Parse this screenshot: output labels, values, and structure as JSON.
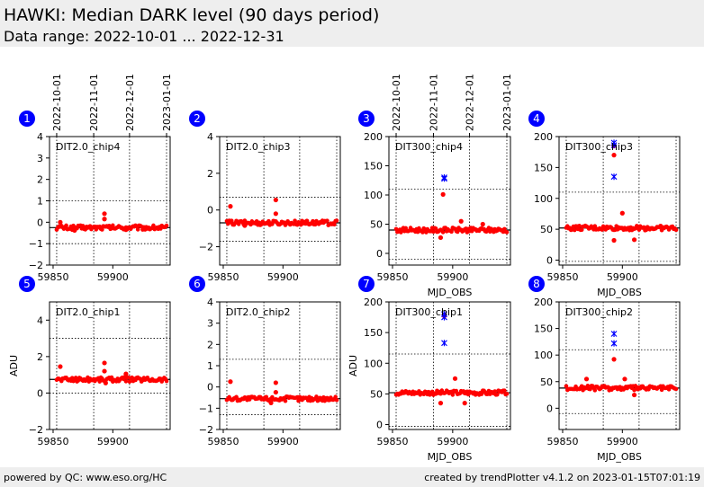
{
  "header": {
    "title": "HAWKI: Median DARK level (90 days period)",
    "subtitle": "Data range: 2022-10-01 ... 2022-12-31"
  },
  "footer": {
    "left": "powered by QC: www.eso.org/HC",
    "right": "created by trendPlotter v4.1.2 on 2023-01-15T07:01:19"
  },
  "colors": {
    "data": "#ff0000",
    "outlier": "#0000ff",
    "badge": "#0000ff"
  },
  "date_ticks": {
    "labels": [
      "2022-10-01",
      "2022-11-01",
      "2022-12-01",
      "2023-01-01"
    ],
    "mjd": [
      59853,
      59884,
      59914,
      59945
    ]
  },
  "chart_data": [
    {
      "type": "scatter",
      "badge": "1",
      "label": "DIT2.0_chip4",
      "xlabel": "",
      "ylabel": "",
      "xlim": [
        59847,
        59948
      ],
      "xticks": [
        59850,
        59900
      ],
      "ylim": [
        -2,
        4
      ],
      "yticks": [
        -2,
        -1,
        0,
        1,
        2,
        3,
        4
      ],
      "ref_line": -0.25,
      "band": [
        -1,
        1
      ],
      "base": [
        59853,
        59945,
        -0.25
      ],
      "points": [
        [
          59856,
          0.0
        ],
        [
          59893,
          0.4
        ],
        [
          59893,
          0.15
        ],
        [
          59868,
          -0.38
        ],
        [
          59911,
          -0.35
        ]
      ],
      "outliers": []
    },
    {
      "type": "scatter",
      "badge": "2",
      "label": "DIT2.0_chip3",
      "xlabel": "",
      "ylabel": "",
      "xlim": [
        59847,
        59948
      ],
      "xticks": [
        59850,
        59900
      ],
      "ylim": [
        -3,
        4
      ],
      "yticks": [
        -2,
        0,
        2,
        4
      ],
      "ref_line": -0.7,
      "band": [
        -1.7,
        0.7
      ],
      "base": [
        59853,
        59945,
        -0.7
      ],
      "points": [
        [
          59856,
          0.2
        ],
        [
          59894,
          0.55
        ],
        [
          59894,
          -0.2
        ],
        [
          59868,
          -0.85
        ],
        [
          59920,
          -0.6
        ]
      ],
      "outliers": []
    },
    {
      "type": "scatter",
      "badge": "3",
      "label": "DIT300_chip4",
      "xlabel": "MJD_OBS",
      "ylabel": "",
      "xlim": [
        59847,
        59948
      ],
      "xticks": [
        59850,
        59900
      ],
      "ylim": [
        -20,
        200
      ],
      "yticks": [
        0,
        50,
        100,
        150,
        200
      ],
      "ref_line": 40,
      "band": [
        -10,
        110
      ],
      "base": [
        59853,
        59945,
        40
      ],
      "points": [
        [
          59892,
          101
        ],
        [
          59890,
          27
        ],
        [
          59907,
          55
        ],
        [
          59925,
          50
        ]
      ],
      "outliers": [
        [
          59893,
          130
        ],
        [
          59893,
          128
        ]
      ]
    },
    {
      "type": "scatter",
      "badge": "4",
      "label": "DIT300_chip3",
      "xlabel": "MJD_OBS",
      "ylabel": "",
      "xlim": [
        59847,
        59948
      ],
      "xticks": [
        59850,
        59900
      ],
      "ylim": [
        -8,
        200
      ],
      "yticks": [
        0,
        50,
        100,
        150,
        200
      ],
      "ref_line": 52,
      "band": [
        -2,
        110
      ],
      "base": [
        59853,
        59945,
        52
      ],
      "points": [
        [
          59893,
          185
        ],
        [
          59893,
          170
        ],
        [
          59893,
          32
        ],
        [
          59900,
          76
        ],
        [
          59910,
          33
        ]
      ],
      "outliers": [
        [
          59893,
          190
        ],
        [
          59893,
          186
        ],
        [
          59893,
          135
        ]
      ]
    },
    {
      "type": "scatter",
      "badge": "5",
      "label": "DIT2.0_chip1",
      "xlabel": "",
      "ylabel": "ADU",
      "xlim": [
        59847,
        59948
      ],
      "xticks": [
        59850,
        59900
      ],
      "ylim": [
        -2,
        5
      ],
      "yticks": [
        -2,
        0,
        2,
        4
      ],
      "ref_line": 0.75,
      "band": [
        0,
        3
      ],
      "base": [
        59853,
        59945,
        0.75
      ],
      "points": [
        [
          59856,
          1.45
        ],
        [
          59893,
          1.65
        ],
        [
          59893,
          1.2
        ],
        [
          59911,
          1.05
        ],
        [
          59894,
          0.55
        ]
      ],
      "outliers": []
    },
    {
      "type": "scatter",
      "badge": "6",
      "label": "DIT2.0_chip2",
      "xlabel": "",
      "ylabel": "",
      "xlim": [
        59847,
        59948
      ],
      "xticks": [
        59850,
        59900
      ],
      "ylim": [
        -2,
        4
      ],
      "yticks": [
        -2,
        -1,
        0,
        1,
        2,
        3,
        4
      ],
      "ref_line": -0.55,
      "band": [
        -1.3,
        1.3
      ],
      "base": [
        59853,
        59945,
        -0.55
      ],
      "points": [
        [
          59856,
          0.25
        ],
        [
          59894,
          0.2
        ],
        [
          59894,
          -0.25
        ],
        [
          59890,
          -0.75
        ]
      ],
      "outliers": []
    },
    {
      "type": "scatter",
      "badge": "7",
      "label": "DIT300_chip1",
      "xlabel": "MJD_OBS",
      "ylabel": "ADU",
      "xlim": [
        59847,
        59948
      ],
      "xticks": [
        59850,
        59900
      ],
      "ylim": [
        -8,
        200
      ],
      "yticks": [
        0,
        50,
        100,
        150,
        200
      ],
      "ref_line": 52,
      "band": [
        -3,
        115
      ],
      "base": [
        59853,
        59945,
        52
      ],
      "points": [
        [
          59890,
          35
        ],
        [
          59902,
          75
        ],
        [
          59910,
          35
        ],
        [
          59893,
          177
        ]
      ],
      "outliers": [
        [
          59893,
          180
        ],
        [
          59893,
          175
        ],
        [
          59893,
          133
        ]
      ]
    },
    {
      "type": "scatter",
      "badge": "8",
      "label": "DIT300_chip2",
      "xlabel": "MJD_OBS",
      "ylabel": "",
      "xlim": [
        59847,
        59948
      ],
      "xticks": [
        59850,
        59900
      ],
      "ylim": [
        -40,
        200
      ],
      "yticks": [
        0,
        50,
        100,
        150,
        200
      ],
      "ref_line": 38,
      "band": [
        -10,
        110
      ],
      "base": [
        59853,
        59945,
        38
      ],
      "points": [
        [
          59893,
          92
        ],
        [
          59870,
          55
        ],
        [
          59902,
          55
        ],
        [
          59910,
          25
        ]
      ],
      "outliers": [
        [
          59893,
          140
        ],
        [
          59893,
          122
        ]
      ]
    }
  ]
}
